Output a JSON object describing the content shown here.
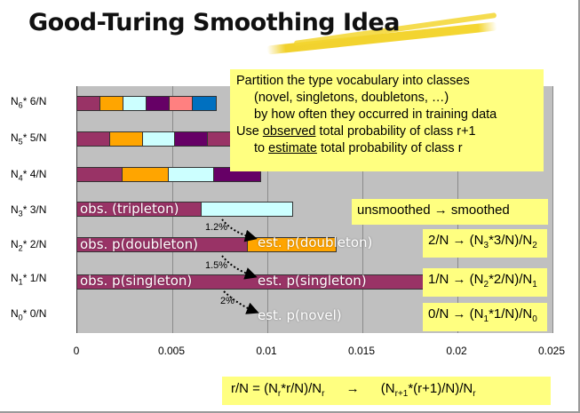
{
  "title": "Good-Turing Smoothing Idea",
  "y_labels": [
    {
      "main": "N",
      "sub": "6",
      "rest": "* 6/N"
    },
    {
      "main": "N",
      "sub": "5",
      "rest": "* 5/N"
    },
    {
      "main": "N",
      "sub": "4",
      "rest": "* 4/N"
    },
    {
      "main": "N",
      "sub": "3",
      "rest": "* 3/N"
    },
    {
      "main": "N",
      "sub": "2",
      "rest": "* 2/N"
    },
    {
      "main": "N",
      "sub": "1",
      "rest": "* 1/N"
    },
    {
      "main": "N",
      "sub": "0",
      "rest": "* 0/N"
    }
  ],
  "x_ticks": [
    "0",
    "0.005",
    "0.01",
    "0.015",
    "0.02",
    "0.025"
  ],
  "x_tick_values": [
    0,
    0.005,
    0.01,
    0.015,
    0.02,
    0.025
  ],
  "colors": {
    "plot_bg": "#c0c0c0",
    "magenta": "#993366",
    "orange": "#ffa500",
    "lightcyan": "#ccffff",
    "purple": "#660066",
    "salmon": "#ff8080",
    "blue": "#0070c0",
    "yellow_box": "#ffff80"
  },
  "chart_data": {
    "type": "bar",
    "x_range": [
      0,
      0.025
    ],
    "rows": [
      {
        "label": "N6* 6/N",
        "end": 0.0074,
        "segments": [
          "#993366",
          "#ffa500",
          "#ccffff",
          "#660066",
          "#ff8080",
          "#0070c0"
        ]
      },
      {
        "label": "N5* 5/N",
        "end": 0.0087,
        "segments": [
          "#993366",
          "#ffa500",
          "#ccffff",
          "#660066",
          "#993366"
        ]
      },
      {
        "label": "N4* 4/N",
        "end": 0.0097,
        "segments": [
          "#993366",
          "#ffa500",
          "#ccffff",
          "#660066"
        ]
      },
      {
        "label": "N3* 3/N",
        "end": 0.0114,
        "segments": [
          "#993366",
          "#ccffff"
        ]
      },
      {
        "label": "N2* 2/N",
        "end": 0.0137,
        "segments": [
          "#993366",
          "#ffa500"
        ]
      },
      {
        "label": "N1* 1/N",
        "end": 0.0185,
        "segments": [
          "#993366",
          "#993366"
        ]
      },
      {
        "label": "N0* 0/N",
        "end": 0,
        "segments": []
      }
    ]
  },
  "bar_labels": {
    "obs_tripleton": "obs. (tripleton)",
    "obs_doubleton": "obs. p(doubleton)",
    "est_doubleton": "est. p(doubleton)",
    "obs_singleton": "obs. p(singleton)",
    "est_singleton": "est. p(singleton)",
    "est_novel": "est. p(novel)"
  },
  "percents": [
    "1.2%",
    "1.5%",
    "2%"
  ],
  "callout": {
    "line1": "Partition the type vocabulary into classes",
    "line2": "(novel, singletons, doubletons, …)",
    "line3": "by how often they occurred in training data",
    "line4_pre": "Use ",
    "line4_u": "observed",
    "line4_post": " total probability of class r+1",
    "line5_pre": "to ",
    "line5_u": "estimate",
    "line5_post": " total probability of class r"
  },
  "unsmoothed_label": "unsmoothed → smoothed",
  "formulas": [
    {
      "a": "2/N → (N",
      "s1": "3",
      "b": "*3/N)/N",
      "s2": "2"
    },
    {
      "a": "1/N → (N",
      "s1": "2",
      "b": "*2/N)/N",
      "s2": "1"
    },
    {
      "a": "0/N → (N",
      "s1": "1",
      "b": "*1/N)/N",
      "s2": "0"
    }
  ],
  "bottom_formula": {
    "a": "r/N = (N",
    "s1": "r",
    "b": "*r/N)/N",
    "s2": "r",
    "arrow": "→",
    "c": "(N",
    "s3": "r+1",
    "d": "*(r+1)/N)/N",
    "s4": "r"
  }
}
